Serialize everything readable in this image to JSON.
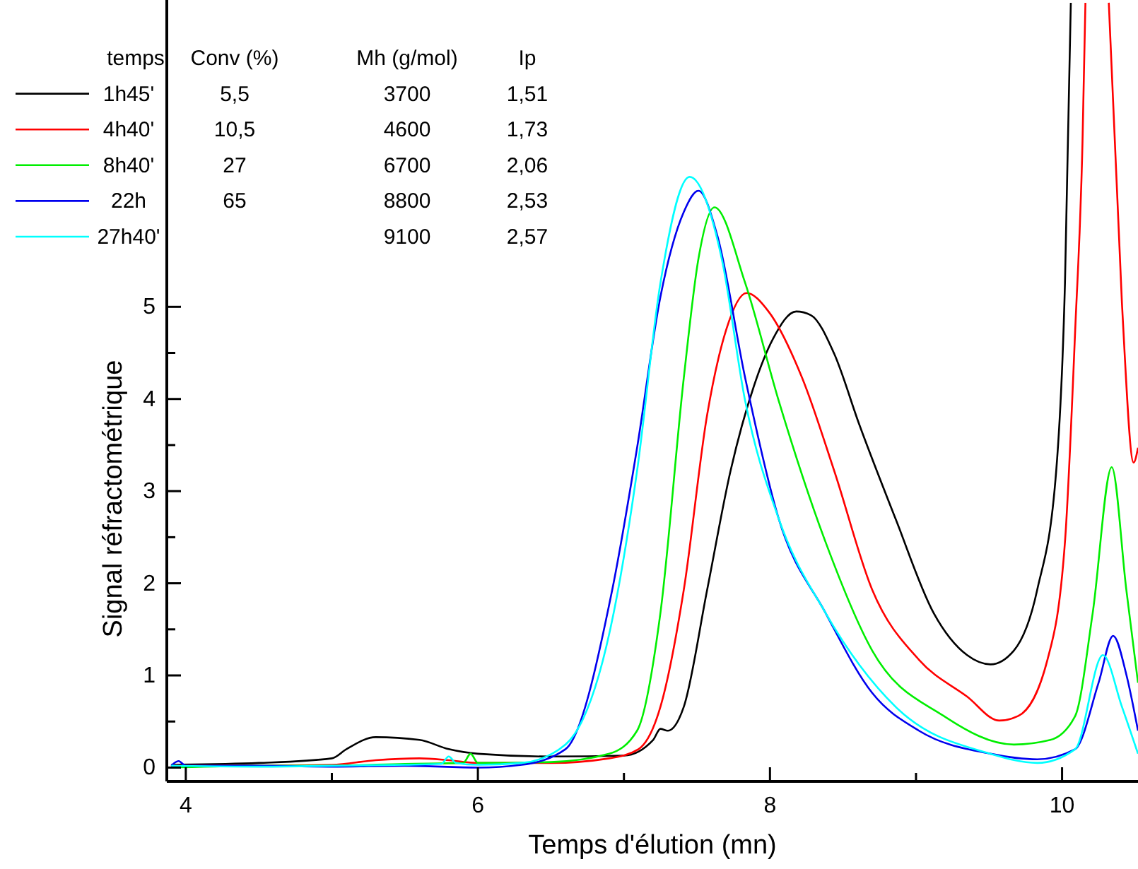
{
  "chart_data": {
    "type": "line",
    "xlabel": "Temps d'élution (mn)",
    "ylabel": "Signal réfractométrique",
    "legend_title": "temps",
    "legend": "top left",
    "grid": false,
    "marker": "none",
    "line_style": "solid",
    "xlim": [
      3.87,
      10.52
    ],
    "ylim": [
      -0.15,
      8.33
    ],
    "xticks": [
      4,
      {
        "value": 5,
        "label": null
      },
      6,
      {
        "value": 7,
        "label": null
      },
      8,
      {
        "value": 9,
        "label": null
      },
      10
    ],
    "yticks": [
      0,
      {
        "value": 0.5,
        "label": null
      },
      1,
      {
        "value": 1.5,
        "label": null
      },
      2,
      {
        "value": 2.5,
        "label": null
      },
      3,
      {
        "value": 3.5,
        "label": null
      },
      4,
      {
        "value": 4.5,
        "label": null
      },
      5
    ],
    "annotations": [
      "Conv (%)",
      "Mh (g/mol)",
      "Ip",
      "5,5",
      "3700",
      "1,51",
      "10,5",
      "4600",
      "1,73",
      "27",
      "6700",
      "2,06",
      "65",
      "8800",
      "2,53",
      "9100",
      "2,57"
    ],
    "series": [
      {
        "name": "1h45'",
        "color": "#000000",
        "x": [
          3.9,
          4.5,
          5.0,
          5.1,
          5.3,
          5.6,
          5.8,
          6.0,
          6.5,
          7.0,
          7.2,
          7.25,
          7.3,
          7.41,
          7.57,
          7.73,
          7.89,
          8.02,
          8.18,
          8.28,
          8.44,
          8.61,
          8.86,
          9.12,
          9.35,
          9.51,
          9.67,
          9.83,
          9.96,
          10.02,
          10.06
        ],
        "values": [
          0.03,
          0.05,
          0.1,
          0.2,
          0.33,
          0.3,
          0.2,
          0.15,
          0.12,
          0.13,
          0.3,
          0.42,
          0.4,
          0.66,
          1.93,
          3.22,
          4.14,
          4.65,
          4.95,
          4.91,
          4.49,
          3.73,
          2.7,
          1.68,
          1.22,
          1.12,
          1.27,
          1.93,
          3.22,
          5.26,
          8.3
        ]
      },
      {
        "name": "4h40'",
        "color": "#ff0000",
        "x": [
          3.9,
          4.5,
          5.0,
          5.3,
          5.6,
          5.8,
          6.0,
          6.5,
          6.9,
          7.1,
          7.25,
          7.41,
          7.57,
          7.7,
          7.84,
          7.99,
          8.22,
          8.44,
          8.7,
          9.02,
          9.35,
          9.57,
          9.7,
          9.9,
          10.02,
          10.09,
          10.14,
          10.16,
          10.25,
          10.32,
          10.41,
          10.49,
          10.52
        ],
        "values": [
          0.02,
          0.02,
          0.03,
          0.08,
          0.1,
          0.08,
          0.05,
          0.05,
          0.1,
          0.2,
          0.66,
          1.93,
          3.83,
          4.75,
          5.15,
          4.95,
          4.23,
          3.22,
          1.93,
          1.17,
          0.77,
          0.51,
          0.56,
          1.17,
          2.45,
          4.75,
          6.79,
          8.3,
          null,
          8.3,
          5.04,
          3.31,
          3.47
        ]
      },
      {
        "name": "8h40'",
        "color": "#00ee00",
        "x": [
          3.9,
          4.5,
          5.0,
          5.5,
          5.9,
          5.95,
          6.0,
          6.5,
          6.9,
          7.09,
          7.25,
          7.41,
          7.51,
          7.62,
          7.83,
          8.06,
          8.38,
          8.7,
          9.19,
          9.67,
          9.92,
          10.09,
          10.21,
          10.34,
          10.44,
          10.52
        ],
        "values": [
          0.0,
          0.02,
          0.02,
          0.04,
          0.05,
          0.15,
          0.05,
          0.06,
          0.15,
          0.4,
          1.68,
          4.23,
          5.52,
          6.08,
          5.26,
          3.98,
          2.45,
          1.27,
          0.56,
          0.25,
          0.3,
          0.56,
          1.68,
          3.26,
          1.93,
          0.92
        ]
      },
      {
        "name": "22h",
        "color": "#0000ee",
        "x": [
          3.9,
          3.95,
          4.0,
          4.5,
          5.0,
          5.5,
          6.0,
          6.3,
          6.6,
          6.92,
          7.09,
          7.25,
          7.41,
          7.51,
          7.64,
          7.83,
          8.06,
          8.38,
          8.7,
          9.02,
          9.51,
          9.83,
          10.09,
          10.25,
          10.35,
          10.44,
          10.52
        ],
        "values": [
          0.02,
          0.07,
          0.02,
          0.02,
          0.01,
          0.02,
          0.0,
          0.03,
          0.2,
          1.93,
          3.47,
          5.11,
          6.03,
          6.26,
          5.77,
          4.23,
          2.7,
          1.68,
          0.81,
          0.4,
          0.15,
          0.09,
          0.2,
          0.92,
          1.43,
          1.01,
          0.4
        ]
      },
      {
        "name": "27h40'",
        "color": "#00ffff",
        "x": [
          3.9,
          4.5,
          5.0,
          5.5,
          5.75,
          5.8,
          5.85,
          6.0,
          6.3,
          6.6,
          6.93,
          7.09,
          7.25,
          7.45,
          7.67,
          7.83,
          8.06,
          8.38,
          8.86,
          9.51,
          9.83,
          10.09,
          10.28,
          10.41,
          10.52
        ],
        "values": [
          0.02,
          0.01,
          0.02,
          0.03,
          0.04,
          0.12,
          0.05,
          0.03,
          0.05,
          0.25,
          1.68,
          3.22,
          5.26,
          6.41,
          5.52,
          3.98,
          2.7,
          1.68,
          0.66,
          0.15,
          0.05,
          0.2,
          1.22,
          0.66,
          0.15
        ]
      }
    ]
  }
}
